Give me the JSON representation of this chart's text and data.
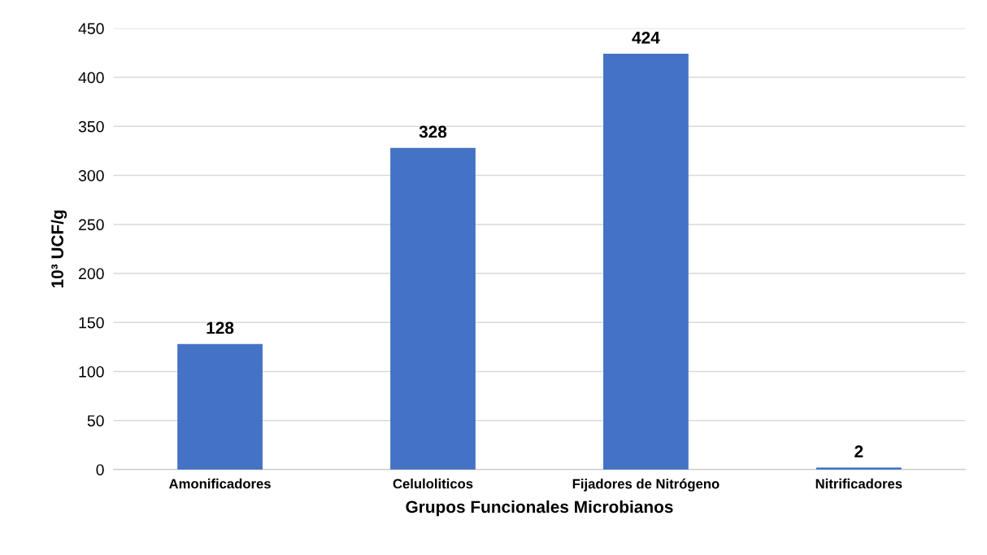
{
  "chart_data": {
    "type": "bar",
    "xlabel": "Grupos Funcionales Microbianos",
    "ylabel": "10³ UCF/g",
    "categories": [
      "Amonificadores",
      "Celuloliticos",
      "Fijadores de Nitrógeno",
      "Nitrificadores"
    ],
    "values": [
      128,
      328,
      424,
      2
    ],
    "color": "#4472c4",
    "ylim": [
      0,
      450
    ],
    "yticks": [
      0,
      50,
      100,
      150,
      200,
      250,
      300,
      350,
      400,
      450
    ],
    "grid": "y",
    "data_labels": true
  }
}
